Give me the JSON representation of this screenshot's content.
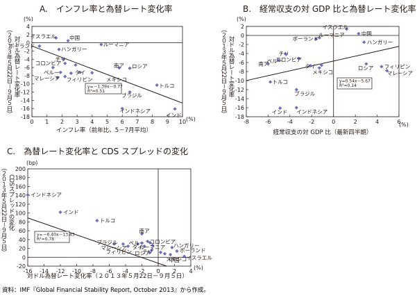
{
  "source_note": "資料：IMF『Global Financial Stability Report, October 2013』から作成。",
  "colors": {
    "marker": "#6f6fb8",
    "line": "#231815",
    "text": "#231815"
  },
  "chart_data": [
    {
      "type": "scatter",
      "title": "A.　インフレ率と為替レート変化率",
      "xlabel": "インフレ率（前年比、5－7月平均）",
      "x_unit": "(%)",
      "ylabel": "対ドル為替レート変化率",
      "ylabel_period": "（２０１３年５月22日－９月５日）",
      "y_unit": "(%)",
      "xlim": [
        0,
        10
      ],
      "ylim": [
        -18,
        4
      ],
      "xticks": [
        0,
        1,
        2,
        3,
        4,
        5,
        6,
        7,
        8,
        9,
        10
      ],
      "yticks": [
        4,
        2,
        0,
        -2,
        -4,
        -6,
        -8,
        -10,
        -12,
        -14,
        -16,
        -18
      ],
      "grid": false,
      "equation": "y=－1.39x－0.77",
      "r2": "R²=0.51",
      "trendline": {
        "slope": -1.39,
        "intercept": -0.77
      },
      "points": [
        {
          "label": "イスラエル",
          "x": 1.6,
          "y": 1.2
        },
        {
          "label": "中国",
          "x": 2.4,
          "y": 0.5
        },
        {
          "label": "ポーランド",
          "x": 0.5,
          "y": -0.8
        },
        {
          "label": "ハンガリー",
          "x": 1.8,
          "y": -1.6
        },
        {
          "label": "ルーマニア",
          "x": 4.6,
          "y": -0.4
        },
        {
          "label": "チリ",
          "x": 2.1,
          "y": -4.0
        },
        {
          "label": "コロンビア",
          "x": 2.2,
          "y": -5.0
        },
        {
          "label": "",
          "x": 2.9,
          "y": -5.4
        },
        {
          "label": "",
          "x": 1.4,
          "y": -6.0
        },
        {
          "label": "",
          "x": 1.9,
          "y": -7.2
        },
        {
          "label": "",
          "x": 2.6,
          "y": -7.4
        },
        {
          "label": "",
          "x": 3.2,
          "y": -7.2
        },
        {
          "label": "",
          "x": 4.0,
          "y": -7.3
        },
        {
          "label": "",
          "x": 2.2,
          "y": -8.2
        },
        {
          "label": "マレーシア",
          "x": 1.7,
          "y": -8.5
        },
        {
          "label": "南ア",
          "x": 5.8,
          "y": -6.1
        },
        {
          "label": "ロシア",
          "x": 6.5,
          "y": -6.2
        },
        {
          "label": "トルコ",
          "x": 8.3,
          "y": -10.3
        },
        {
          "label": "ブラジル",
          "x": 6.5,
          "y": -12.0
        },
        {
          "label": "インドネシア",
          "x": 6.0,
          "y": -16.0
        },
        {
          "label": "インド",
          "x": 9.5,
          "y": -16.1
        }
      ],
      "extra_labels": [
        "ペルー",
        "タイ",
        "フィリピン",
        "メキシコ"
      ]
    },
    {
      "type": "scatter",
      "title": "B.　経常収支の対 GDP 比と為替レート変化率",
      "xlabel": "経常収支の対 GDP 比（最新四半期）",
      "x_unit": "(%)",
      "ylabel": "対ドル為替レート変化率",
      "ylabel_period": "（２０１３年５月22日－９月５日）",
      "y_unit": "(%)",
      "xlim": [
        -8,
        6
      ],
      "ylim": [
        -18,
        2
      ],
      "xticks": [
        -8,
        -6,
        -4,
        -2,
        0,
        2,
        4,
        6
      ],
      "yticks": [
        2,
        0,
        -2,
        -4,
        -6,
        -8,
        -10,
        -12,
        -14,
        -16,
        -18
      ],
      "grid": false,
      "equation": "y=0.54x－5.67",
      "r2": "R²=0.14",
      "trendline": {
        "slope": 0.54,
        "intercept": -5.67
      },
      "points": [
        {
          "label": "イスラエル",
          "x": 1.2,
          "y": 1.4
        },
        {
          "label": "中国",
          "x": 2.3,
          "y": 0.4
        },
        {
          "label": "ポーランド",
          "x": -1.6,
          "y": -0.8
        },
        {
          "label": "ルーマニア",
          "x": -1.3,
          "y": -0.5
        },
        {
          "label": "ハンガリー",
          "x": 2.8,
          "y": -1.5
        },
        {
          "label": "チリ",
          "x": -4.4,
          "y": -4.1
        },
        {
          "label": "ペルー",
          "x": -5.1,
          "y": -5.4
        },
        {
          "label": "コロンビア",
          "x": -3.2,
          "y": -5.1
        },
        {
          "label": "南ア",
          "x": -6.0,
          "y": -6.3
        },
        {
          "label": "タイ",
          "x": -2.1,
          "y": -6.7
        },
        {
          "label": "",
          "x": -1.1,
          "y": -6.6
        },
        {
          "label": "メキシコ",
          "x": -1.3,
          "y": -7.2
        },
        {
          "label": "ロシア",
          "x": 3.0,
          "y": -6.3
        },
        {
          "label": "フィリピン",
          "x": 4.4,
          "y": -6.9
        },
        {
          "label": "マレーシア",
          "x": 4.9,
          "y": -7.8
        },
        {
          "label": "トルコ",
          "x": -5.8,
          "y": -10.3
        },
        {
          "label": "ブラジル",
          "x": -3.4,
          "y": -12.0
        },
        {
          "label": "インド",
          "x": -4.9,
          "y": -16.1
        },
        {
          "label": "インドネシア",
          "x": -3.4,
          "y": -16.0
        }
      ]
    },
    {
      "type": "scatter",
      "title": "C.　為替レート変化率と CDS スプレッドの変化",
      "xlabel": "対ドル為替レート変化率（２０１３年５月22日－９月５日）",
      "x_unit": "(%)",
      "ylabel": "CDSスプレッドの変化",
      "ylabel_period": "（２０１３年５月22日－９月５日）",
      "y_unit": "(bp)",
      "xlim": [
        -16,
        4
      ],
      "ylim": [
        -20,
        200
      ],
      "xticks": [
        -16,
        -14,
        -12,
        -10,
        -8,
        -6,
        -4,
        -2,
        0,
        2,
        4
      ],
      "yticks": [
        200,
        180,
        160,
        140,
        120,
        100,
        80,
        60,
        40,
        20,
        0,
        -20
      ],
      "grid": false,
      "equation": "y=－6.40x－13.43",
      "r2": "R²=0.78",
      "trendline": {
        "slope": -6.4,
        "intercept": -13.43
      },
      "points": [
        {
          "label": "インドネシア",
          "x": -16.0,
          "y": 141
        },
        {
          "label": "インド",
          "x": -12.0,
          "y": 102
        },
        {
          "label": "トルコ",
          "x": -7.5,
          "y": 83
        },
        {
          "label": "ブラジル",
          "x": -5.4,
          "y": 30
        },
        {
          "label": "マレーシア",
          "x": -4.3,
          "y": 30
        },
        {
          "label": "フィリピン",
          "x": -3.7,
          "y": 25
        },
        {
          "label": "南ア",
          "x": -2.0,
          "y": 53
        },
        {
          "label": "ペルー",
          "x": -2.5,
          "y": 30
        },
        {
          "label": "タイ",
          "x": -2.0,
          "y": 32
        },
        {
          "label": "ロシア",
          "x": -1.7,
          "y": 25
        },
        {
          "label": "",
          "x": -1.3,
          "y": 36
        },
        {
          "label": "",
          "x": -1.0,
          "y": 33
        },
        {
          "label": "コロンビア",
          "x": -0.7,
          "y": 27
        },
        {
          "label": "ルーマニア",
          "x": -0.8,
          "y": 16
        },
        {
          "label": "チリ",
          "x": -1.1,
          "y": 11
        },
        {
          "label": "メキシコ",
          "x": 0.8,
          "y": 8
        },
        {
          "label": "",
          "x": 0.3,
          "y": 11
        },
        {
          "label": "ハンガリー",
          "x": 1.7,
          "y": 22
        },
        {
          "label": "ポーランド",
          "x": 2.3,
          "y": 14
        },
        {
          "label": "中国",
          "x": 1.5,
          "y": 6
        },
        {
          "label": "イスラエル",
          "x": 3.2,
          "y": 2
        }
      ]
    }
  ]
}
